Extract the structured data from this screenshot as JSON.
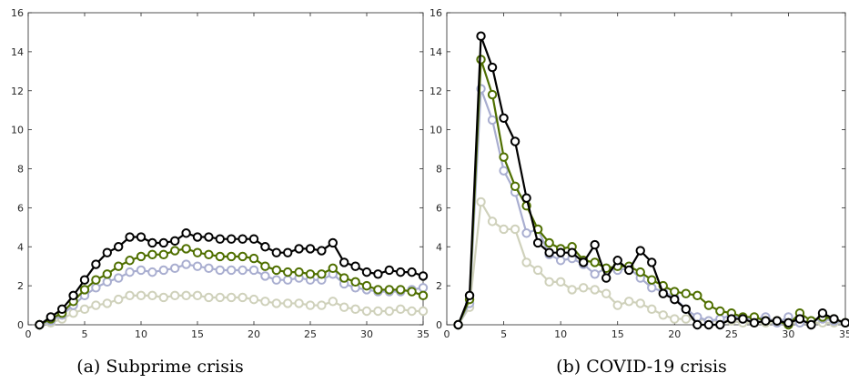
{
  "chart_data": [
    {
      "type": "line",
      "caption": "(a) Subprime crisis",
      "xlim": [
        0,
        35
      ],
      "ylim": [
        0,
        16
      ],
      "xticks": [
        0,
        5,
        10,
        15,
        20,
        25,
        30,
        35
      ],
      "yticks": [
        0,
        2,
        4,
        6,
        8,
        10,
        12,
        14,
        16
      ],
      "grid": false,
      "x": [
        1,
        2,
        3,
        4,
        5,
        6,
        7,
        8,
        9,
        10,
        11,
        12,
        13,
        14,
        15,
        16,
        17,
        18,
        19,
        20,
        21,
        22,
        23,
        24,
        25,
        26,
        27,
        28,
        29,
        30,
        31,
        32,
        33,
        34,
        35
      ],
      "series": [
        {
          "color": "#000000",
          "values": [
            0.0,
            0.4,
            0.8,
            1.5,
            2.3,
            3.1,
            3.7,
            4.0,
            4.5,
            4.5,
            4.2,
            4.2,
            4.3,
            4.7,
            4.5,
            4.5,
            4.4,
            4.4,
            4.4,
            4.4,
            4.0,
            3.7,
            3.7,
            3.9,
            3.9,
            3.8,
            4.2,
            3.2,
            3.0,
            2.7,
            2.6,
            2.8,
            2.7,
            2.7,
            2.5
          ]
        },
        {
          "color": "#4f6f00",
          "values": [
            0.0,
            0.3,
            0.6,
            1.2,
            1.8,
            2.3,
            2.6,
            3.0,
            3.3,
            3.5,
            3.6,
            3.6,
            3.8,
            3.9,
            3.7,
            3.6,
            3.5,
            3.5,
            3.5,
            3.4,
            3.0,
            2.8,
            2.7,
            2.7,
            2.6,
            2.6,
            2.9,
            2.4,
            2.2,
            2.0,
            1.8,
            1.8,
            1.8,
            1.7,
            1.5
          ]
        },
        {
          "color": "#a9aed0",
          "values": [
            0.0,
            0.2,
            0.5,
            1.0,
            1.5,
            1.9,
            2.2,
            2.4,
            2.7,
            2.8,
            2.7,
            2.8,
            2.9,
            3.1,
            3.0,
            2.9,
            2.8,
            2.8,
            2.8,
            2.8,
            2.5,
            2.3,
            2.3,
            2.4,
            2.3,
            2.3,
            2.6,
            2.1,
            1.9,
            1.8,
            1.7,
            1.7,
            1.7,
            1.8,
            1.9
          ]
        },
        {
          "color": "#cfd1bb",
          "values": [
            0.0,
            0.1,
            0.3,
            0.6,
            0.8,
            1.0,
            1.1,
            1.3,
            1.5,
            1.5,
            1.5,
            1.4,
            1.5,
            1.5,
            1.5,
            1.4,
            1.4,
            1.4,
            1.4,
            1.3,
            1.2,
            1.1,
            1.1,
            1.1,
            1.0,
            1.0,
            1.2,
            0.9,
            0.8,
            0.7,
            0.7,
            0.7,
            0.8,
            0.7,
            0.7
          ]
        }
      ]
    },
    {
      "type": "line",
      "caption": "(b) COVID-19 crisis",
      "xlim": [
        0,
        35
      ],
      "ylim": [
        0,
        16
      ],
      "xticks": [
        0,
        5,
        10,
        15,
        20,
        25,
        30,
        35
      ],
      "yticks": [
        0,
        2,
        4,
        6,
        8,
        10,
        12,
        14,
        16
      ],
      "grid": false,
      "x": [
        1,
        2,
        3,
        4,
        5,
        6,
        7,
        8,
        9,
        10,
        11,
        12,
        13,
        14,
        15,
        16,
        17,
        18,
        19,
        20,
        21,
        22,
        23,
        24,
        25,
        26,
        27,
        28,
        29,
        30,
        31,
        32,
        33,
        34,
        35
      ],
      "series": [
        {
          "color": "#000000",
          "values": [
            0.0,
            1.5,
            14.8,
            13.2,
            10.6,
            9.4,
            6.5,
            4.2,
            3.7,
            3.7,
            3.7,
            3.2,
            4.1,
            2.4,
            3.3,
            2.8,
            3.8,
            3.2,
            1.6,
            1.3,
            0.8,
            0.0,
            0.0,
            0.0,
            0.3,
            0.3,
            0.1,
            0.2,
            0.2,
            0.1,
            0.3,
            0.0,
            0.6,
            0.3,
            0.1
          ]
        },
        {
          "color": "#4f6f00",
          "values": [
            0.0,
            1.3,
            13.6,
            11.8,
            8.6,
            7.1,
            6.1,
            4.9,
            4.2,
            3.9,
            4.0,
            3.3,
            3.2,
            2.9,
            3.0,
            3.0,
            2.7,
            2.3,
            2.0,
            1.7,
            1.6,
            1.5,
            1.0,
            0.7,
            0.6,
            0.4,
            0.4,
            0.2,
            0.2,
            0.0,
            0.6,
            0.2,
            0.4,
            0.3,
            0.1
          ]
        },
        {
          "color": "#a9aed0",
          "values": [
            0.0,
            1.1,
            12.1,
            10.5,
            7.9,
            6.8,
            4.7,
            4.9,
            3.6,
            3.3,
            3.4,
            3.1,
            2.6,
            2.9,
            2.8,
            2.9,
            2.4,
            1.9,
            1.7,
            1.4,
            0.8,
            0.4,
            0.2,
            0.3,
            0.5,
            0.3,
            0.3,
            0.4,
            0.1,
            0.4,
            0.1,
            0.2,
            0.3,
            0.2,
            0.1
          ]
        },
        {
          "color": "#cfd1bb",
          "values": [
            0.0,
            0.9,
            6.3,
            5.3,
            4.9,
            4.9,
            3.2,
            2.8,
            2.2,
            2.2,
            1.8,
            1.9,
            1.8,
            1.6,
            1.0,
            1.2,
            1.1,
            0.8,
            0.5,
            0.3,
            0.3,
            0.3,
            0.2,
            0.2,
            0.2,
            0.1,
            0.1,
            0.1,
            0.1,
            0.1,
            0.1,
            0.1,
            0.1,
            0.1,
            0.1
          ]
        }
      ]
    }
  ]
}
